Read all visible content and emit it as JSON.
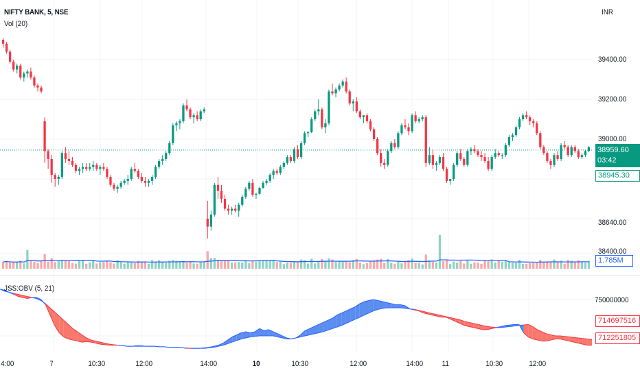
{
  "header": {
    "symbol_title": "NIFTY BANK, 5, NSE",
    "volume_indicator": "Vol (20)",
    "obv_indicator": "JSS:OBV (5, 21)",
    "currency": "INR"
  },
  "price_axis": {
    "ticks": [
      "39400.00",
      "39200.00",
      "39000.00",
      "38640.00",
      "38400.00"
    ],
    "current_price": "38959.60",
    "countdown": "03:42",
    "prev_close": "38945.30",
    "volume_ma": "1.785M"
  },
  "obv_axis": {
    "ticks": [
      "750000000"
    ],
    "obv_value_1": "714697516",
    "obv_value_2": "712251805"
  },
  "time_axis": {
    "labels": [
      {
        "text": "4:00",
        "bold": false
      },
      {
        "text": "7",
        "bold": false
      },
      {
        "text": "10:30",
        "bold": false
      },
      {
        "text": "12:00",
        "bold": false
      },
      {
        "text": "14:00",
        "bold": false
      },
      {
        "text": "10",
        "bold": true
      },
      {
        "text": "10:30",
        "bold": false
      },
      {
        "text": "12:00",
        "bold": false
      },
      {
        "text": "14:00",
        "bold": false
      },
      {
        "text": "11",
        "bold": false
      },
      {
        "text": "10:30",
        "bold": false
      },
      {
        "text": "12:00",
        "bold": false
      }
    ]
  },
  "colors": {
    "up": "#089981",
    "down": "#f23645",
    "vol_up": "#8fd3c3",
    "vol_down": "#f7a9a7",
    "vol_ma": "#2962ff",
    "obv_up_fill": "#5b8cf0",
    "obv_down_fill": "#f8786b",
    "grid": "#f0f3fa"
  },
  "chart_data": {
    "type": "candlestick",
    "title": "NIFTY BANK, 5, NSE",
    "ylabel": "INR",
    "ylim": [
      38300,
      39550
    ],
    "prev_close_line": 38945.3,
    "candles_ohlc": [
      [
        39500,
        39510,
        39460,
        39480
      ],
      [
        39480,
        39490,
        39430,
        39440
      ],
      [
        39440,
        39450,
        39380,
        39390
      ],
      [
        39390,
        39400,
        39340,
        39350
      ],
      [
        39350,
        39380,
        39330,
        39370
      ],
      [
        39370,
        39380,
        39300,
        39310
      ],
      [
        39310,
        39340,
        39290,
        39330
      ],
      [
        39330,
        39350,
        39310,
        39340
      ],
      [
        39340,
        39360,
        39300,
        39310
      ],
      [
        39310,
        39320,
        39260,
        39270
      ],
      [
        39270,
        39280,
        39240,
        39260
      ],
      [
        39260,
        39270,
        39230,
        39240
      ],
      [
        39090,
        39110,
        38880,
        38940
      ],
      [
        38940,
        38950,
        38850,
        38900
      ],
      [
        38900,
        38920,
        38780,
        38820
      ],
      [
        38820,
        38830,
        38760,
        38800
      ],
      [
        38800,
        38820,
        38770,
        38810
      ],
      [
        38810,
        38940,
        38800,
        38930
      ],
      [
        38930,
        38960,
        38880,
        38900
      ],
      [
        38900,
        38940,
        38870,
        38890
      ],
      [
        38890,
        38910,
        38860,
        38870
      ],
      [
        38870,
        38880,
        38830,
        38840
      ],
      [
        38840,
        38860,
        38820,
        38850
      ],
      [
        38850,
        38880,
        38830,
        38860
      ],
      [
        38860,
        38880,
        38840,
        38850
      ],
      [
        38850,
        38880,
        38840,
        38860
      ],
      [
        38860,
        38890,
        38840,
        38870
      ],
      [
        38870,
        38880,
        38840,
        38850
      ],
      [
        38850,
        38870,
        38820,
        38860
      ],
      [
        38860,
        38880,
        38840,
        38850
      ],
      [
        38850,
        38860,
        38800,
        38810
      ],
      [
        38810,
        38820,
        38760,
        38770
      ],
      [
        38770,
        38780,
        38740,
        38750
      ],
      [
        38750,
        38770,
        38730,
        38760
      ],
      [
        38760,
        38790,
        38750,
        38780
      ],
      [
        38780,
        38800,
        38770,
        38790
      ],
      [
        38790,
        38820,
        38770,
        38800
      ],
      [
        38800,
        38860,
        38790,
        38850
      ],
      [
        38850,
        38880,
        38830,
        38840
      ],
      [
        38840,
        38850,
        38800,
        38810
      ],
      [
        38810,
        38830,
        38780,
        38790
      ],
      [
        38790,
        38810,
        38760,
        38780
      ],
      [
        38780,
        38800,
        38760,
        38790
      ],
      [
        38790,
        38820,
        38770,
        38810
      ],
      [
        38810,
        38870,
        38800,
        38860
      ],
      [
        38860,
        38900,
        38850,
        38890
      ],
      [
        38890,
        38920,
        38870,
        38900
      ],
      [
        38900,
        38940,
        38890,
        38930
      ],
      [
        38930,
        38990,
        38920,
        38980
      ],
      [
        38980,
        39080,
        38970,
        39070
      ],
      [
        39070,
        39090,
        39040,
        39080
      ],
      [
        39080,
        39100,
        39050,
        39090
      ],
      [
        39090,
        39180,
        39080,
        39170
      ],
      [
        39170,
        39200,
        39140,
        39150
      ],
      [
        39150,
        39160,
        39100,
        39110
      ],
      [
        39110,
        39130,
        39080,
        39120
      ],
      [
        39120,
        39140,
        39090,
        39100
      ],
      [
        39100,
        39150,
        39090,
        39140
      ],
      [
        39140,
        39160,
        39130,
        39150
      ],
      [
        38600,
        38690,
        38500,
        38560
      ],
      [
        38560,
        38640,
        38540,
        38620
      ],
      [
        38620,
        38780,
        38610,
        38770
      ],
      [
        38770,
        38810,
        38700,
        38740
      ],
      [
        38740,
        38770,
        38680,
        38700
      ],
      [
        38700,
        38720,
        38640,
        38650
      ],
      [
        38650,
        38670,
        38620,
        38640
      ],
      [
        38640,
        38660,
        38620,
        38650
      ],
      [
        38650,
        38670,
        38630,
        38640
      ],
      [
        38640,
        38680,
        38610,
        38670
      ],
      [
        38670,
        38720,
        38660,
        38710
      ],
      [
        38710,
        38760,
        38700,
        38750
      ],
      [
        38750,
        38790,
        38740,
        38780
      ],
      [
        38780,
        38800,
        38710,
        38720
      ],
      [
        38720,
        38730,
        38700,
        38725
      ],
      [
        38725,
        38760,
        38720,
        38755
      ],
      [
        38755,
        38790,
        38750,
        38780
      ],
      [
        38780,
        38800,
        38770,
        38790
      ],
      [
        38790,
        38830,
        38780,
        38820
      ],
      [
        38820,
        38850,
        38800,
        38840
      ],
      [
        38840,
        38850,
        38820,
        38830
      ],
      [
        38830,
        38870,
        38820,
        38860
      ],
      [
        38860,
        38890,
        38850,
        38880
      ],
      [
        38880,
        38920,
        38870,
        38910
      ],
      [
        38910,
        38920,
        38880,
        38890
      ],
      [
        38890,
        38960,
        38880,
        38950
      ],
      [
        38950,
        38970,
        38900,
        38910
      ],
      [
        38910,
        38990,
        38900,
        38980
      ],
      [
        38980,
        39040,
        38970,
        39030
      ],
      [
        39030,
        39040,
        39010,
        39035
      ],
      [
        39035,
        39110,
        39030,
        39100
      ],
      [
        39100,
        39150,
        39090,
        39140
      ],
      [
        39140,
        39200,
        39120,
        39150
      ],
      [
        39150,
        39160,
        39050,
        39060
      ],
      [
        39060,
        39100,
        39030,
        39080
      ],
      [
        39080,
        39250,
        39070,
        39240
      ],
      [
        39240,
        39280,
        39220,
        39230
      ],
      [
        39230,
        39260,
        39210,
        39250
      ],
      [
        39250,
        39280,
        39240,
        39270
      ],
      [
        39270,
        39300,
        39260,
        39290
      ],
      [
        39290,
        39310,
        39230,
        39240
      ],
      [
        39240,
        39250,
        39170,
        39180
      ],
      [
        39180,
        39200,
        39140,
        39190
      ],
      [
        39190,
        39210,
        39130,
        39140
      ],
      [
        39140,
        39150,
        39100,
        39110
      ],
      [
        39110,
        39120,
        39080,
        39120
      ],
      [
        39120,
        39130,
        39080,
        39090
      ],
      [
        39090,
        39100,
        39040,
        39050
      ],
      [
        39050,
        39060,
        38990,
        39000
      ],
      [
        39000,
        39010,
        38920,
        38930
      ],
      [
        38930,
        38950,
        38860,
        38880
      ],
      [
        38880,
        38900,
        38850,
        38870
      ],
      [
        38870,
        38950,
        38860,
        38940
      ],
      [
        38940,
        38990,
        38930,
        38980
      ],
      [
        38980,
        39000,
        38950,
        38960
      ],
      [
        38960,
        39040,
        38950,
        39030
      ],
      [
        39030,
        39080,
        39020,
        39070
      ],
      [
        39070,
        39100,
        39050,
        39060
      ],
      [
        39060,
        39080,
        39020,
        39040
      ],
      [
        39040,
        39130,
        39030,
        39120
      ],
      [
        39120,
        39140,
        39080,
        39090
      ],
      [
        39090,
        39110,
        39080,
        39100
      ],
      [
        39100,
        39120,
        39090,
        39110
      ],
      [
        39110,
        39120,
        38860,
        38880
      ],
      [
        38880,
        38960,
        38870,
        38920
      ],
      [
        38920,
        38950,
        38850,
        38870
      ],
      [
        38870,
        38890,
        38840,
        38880
      ],
      [
        38880,
        38920,
        38870,
        38910
      ],
      [
        38910,
        38930,
        38840,
        38850
      ],
      [
        38850,
        38860,
        38780,
        38790
      ],
      [
        38790,
        38800,
        38770,
        38800
      ],
      [
        38800,
        38880,
        38790,
        38870
      ],
      [
        38870,
        38940,
        38860,
        38930
      ],
      [
        38930,
        38950,
        38890,
        38900
      ],
      [
        38900,
        38910,
        38860,
        38870
      ],
      [
        38870,
        38950,
        38860,
        38940
      ],
      [
        38940,
        38960,
        38920,
        38950
      ],
      [
        38950,
        38970,
        38930,
        38940
      ],
      [
        38940,
        38950,
        38910,
        38920
      ],
      [
        38920,
        38940,
        38890,
        38910
      ],
      [
        38910,
        38930,
        38880,
        38890
      ],
      [
        38890,
        38910,
        38840,
        38850
      ],
      [
        38850,
        38920,
        38840,
        38910
      ],
      [
        38910,
        38950,
        38900,
        38930
      ],
      [
        38930,
        38940,
        38910,
        38920
      ],
      [
        38920,
        38930,
        38900,
        38920
      ],
      [
        38920,
        38980,
        38910,
        38970
      ],
      [
        38970,
        39020,
        38960,
        39010
      ],
      [
        39010,
        39030,
        38990,
        39020
      ],
      [
        39020,
        39070,
        39010,
        39060
      ],
      [
        39060,
        39110,
        39050,
        39100
      ],
      [
        39100,
        39130,
        39090,
        39120
      ],
      [
        39120,
        39140,
        39100,
        39110
      ],
      [
        39110,
        39120,
        39070,
        39090
      ],
      [
        39090,
        39100,
        39060,
        39080
      ],
      [
        39080,
        39090,
        39020,
        39030
      ],
      [
        39030,
        39040,
        38950,
        38960
      ],
      [
        38960,
        38970,
        38920,
        38930
      ],
      [
        38930,
        38940,
        38880,
        38890
      ],
      [
        38890,
        38900,
        38850,
        38870
      ],
      [
        38870,
        38930,
        38860,
        38920
      ],
      [
        38920,
        38940,
        38890,
        38900
      ],
      [
        38900,
        38980,
        38890,
        38970
      ],
      [
        38970,
        38990,
        38950,
        38960
      ],
      [
        38960,
        38970,
        38910,
        38920
      ],
      [
        38920,
        38970,
        38910,
        38960
      ],
      [
        38960,
        38970,
        38930,
        38940
      ],
      [
        38940,
        38950,
        38900,
        38910
      ],
      [
        38910,
        38930,
        38900,
        38920
      ],
      [
        38920,
        38945,
        38910,
        38940
      ],
      [
        38940,
        38965,
        38935,
        38959.6
      ]
    ],
    "volume_series_note": "Volume bars per candle (relative), with 20-period MA line",
    "obv": {
      "name": "JSS:OBV (5, 21)",
      "ylim": [
        680000000,
        770000000
      ],
      "fast": [
        760,
        759,
        757,
        755,
        753,
        752,
        751,
        752,
        752,
        750,
        745,
        735,
        725,
        718,
        714,
        712,
        711,
        710,
        709,
        709.5,
        709,
        708,
        707,
        706.5,
        706,
        706,
        706,
        705.5,
        705,
        705,
        705.5,
        705.5,
        705,
        705,
        705,
        704.5,
        704.5,
        704,
        704,
        704,
        703.5,
        703,
        703,
        703,
        703,
        703.5,
        704,
        705,
        706,
        708,
        711,
        714,
        716,
        718,
        719,
        718,
        719,
        722,
        720,
        721,
        719,
        717,
        715,
        713,
        712,
        713,
        716,
        720,
        722,
        724,
        726,
        728,
        730,
        732,
        735,
        737,
        739,
        741,
        743,
        746,
        748,
        749,
        750,
        749,
        748,
        747,
        746,
        745,
        745,
        744,
        741,
        740,
        739,
        737,
        736,
        735,
        734,
        733,
        733,
        731,
        729,
        727,
        725,
        724,
        723,
        722,
        721,
        721,
        722,
        723,
        724,
        725,
        725.5,
        726,
        726,
        718,
        714,
        712,
        711,
        710,
        710,
        711,
        712,
        712,
        711,
        710,
        709,
        708,
        707,
        706,
        706
      ],
      "slow": [
        760,
        758,
        757,
        756,
        755,
        754,
        753,
        752,
        751,
        749,
        746,
        742,
        738,
        734,
        730,
        726,
        722,
        719,
        716,
        713,
        711,
        710,
        709,
        708,
        707,
        706.5,
        706,
        705.5,
        705,
        705,
        705,
        705,
        705,
        705,
        705,
        704.5,
        704.5,
        704,
        704,
        703.8,
        703.5,
        703.3,
        703,
        703,
        703,
        703,
        703.5,
        704,
        705,
        706,
        707.5,
        709,
        710.5,
        712,
        713,
        714,
        714.5,
        715,
        715,
        715,
        715,
        714,
        713,
        712,
        712,
        713,
        714,
        715,
        716,
        717,
        718,
        719,
        720.5,
        722,
        723.5,
        725,
        727,
        729,
        731,
        733,
        735,
        737,
        739,
        740.5,
        741.5,
        742,
        742,
        742,
        742,
        741.5,
        741,
        740.5,
        739.5,
        738.5,
        737.5,
        736.5,
        735.5,
        734.5,
        733.5,
        732.5,
        731.5,
        730.5,
        729,
        728,
        727,
        726,
        725,
        724,
        723.5,
        723,
        723,
        723.5,
        724,
        724.5,
        725,
        725.5,
        726,
        724,
        721,
        719,
        717,
        716,
        715,
        715,
        714.5,
        714,
        713.5,
        713,
        712.5,
        712,
        711.5,
        710.5,
        710
      ]
    },
    "volume_ma_value": "1.785M",
    "price_levels": [
      39400,
      39200,
      39000,
      38640,
      38400
    ],
    "x_labels": [
      "4:00",
      "7",
      "10:30",
      "12:00",
      "14:00",
      "10",
      "10:30",
      "12:00",
      "14:00",
      "11",
      "10:30",
      "12:00"
    ]
  }
}
